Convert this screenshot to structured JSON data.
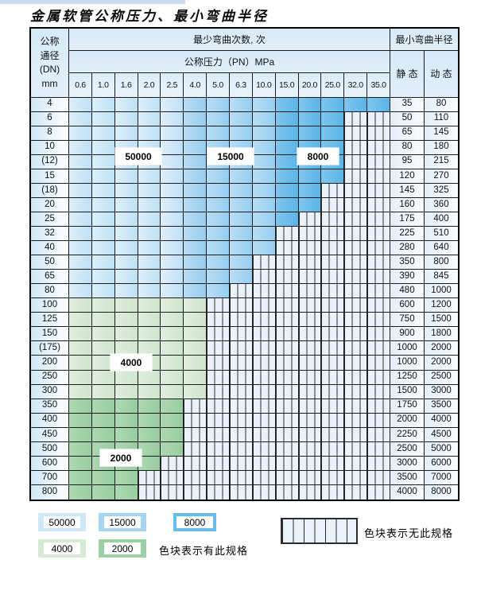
{
  "title": "金属软管公称压力、最小弯曲半径",
  "colors": {
    "cycles_50000": "#cfe8f8",
    "cycles_15000": "#a4d5f2",
    "cycles_8000": "#68beeb",
    "cycles_4000": "#d7ead5",
    "cycles_2000": "#9bd0a4",
    "hatch_bg": "#eaf2fb",
    "grid_line": "#1c1c1c"
  },
  "chart_data": {
    "type": "table",
    "title": "金属软管公称压力、最小弯曲半径",
    "corner_lines": [
      "公称",
      "通径",
      "(DN)",
      "mm"
    ],
    "bend_cycles_header": "最少弯曲次数, 次",
    "pressure_header": "公称压力（PN）MPa",
    "radius_header": "最小弯曲半径",
    "static_header": "静 态",
    "dynamic_header": "动 态",
    "pressure_columns": [
      "0.6",
      "1.0",
      "1.6",
      "2.0",
      "2.5",
      "4.0",
      "5.0",
      "6.3",
      "10.0",
      "15.0",
      "20.0",
      "25.0",
      "32.0",
      "35.0"
    ],
    "blue_band_cycles": {
      "cols_0_to_4": "50000",
      "cols_5_to_8": "15000",
      "cols_9_to_13": "8000"
    },
    "rows": [
      {
        "dn": "4",
        "colored": 14,
        "palette": "blue",
        "static": "35",
        "dynamic": "80"
      },
      {
        "dn": "6",
        "colored": 12,
        "palette": "blue",
        "static": "50",
        "dynamic": "110"
      },
      {
        "dn": "8",
        "colored": 12,
        "palette": "blue",
        "static": "65",
        "dynamic": "145"
      },
      {
        "dn": "10",
        "colored": 12,
        "palette": "blue",
        "static": "80",
        "dynamic": "180"
      },
      {
        "dn": "(12)",
        "colored": 12,
        "palette": "blue",
        "static": "95",
        "dynamic": "215"
      },
      {
        "dn": "15",
        "colored": 12,
        "palette": "blue",
        "static": "120",
        "dynamic": "270"
      },
      {
        "dn": "(18)",
        "colored": 11,
        "palette": "blue",
        "static": "145",
        "dynamic": "325"
      },
      {
        "dn": "20",
        "colored": 11,
        "palette": "blue",
        "static": "160",
        "dynamic": "360"
      },
      {
        "dn": "25",
        "colored": 10,
        "palette": "blue",
        "static": "175",
        "dynamic": "400"
      },
      {
        "dn": "32",
        "colored": 9,
        "palette": "blue",
        "static": "225",
        "dynamic": "510"
      },
      {
        "dn": "40",
        "colored": 9,
        "palette": "blue",
        "static": "280",
        "dynamic": "640"
      },
      {
        "dn": "50",
        "colored": 8,
        "palette": "blue",
        "static": "350",
        "dynamic": "800"
      },
      {
        "dn": "65",
        "colored": 8,
        "palette": "blue",
        "static": "390",
        "dynamic": "845"
      },
      {
        "dn": "80",
        "colored": 7,
        "palette": "blue",
        "static": "480",
        "dynamic": "1000"
      },
      {
        "dn": "100",
        "colored": 6,
        "palette": "green4000",
        "static": "600",
        "dynamic": "1200"
      },
      {
        "dn": "125",
        "colored": 6,
        "palette": "green4000",
        "static": "750",
        "dynamic": "1500"
      },
      {
        "dn": "150",
        "colored": 6,
        "palette": "green4000",
        "static": "900",
        "dynamic": "1800"
      },
      {
        "dn": "(175)",
        "colored": 6,
        "palette": "green4000",
        "static": "1000",
        "dynamic": "2000"
      },
      {
        "dn": "200",
        "colored": 6,
        "palette": "green4000",
        "static": "1000",
        "dynamic": "2000"
      },
      {
        "dn": "250",
        "colored": 6,
        "palette": "green4000",
        "static": "1250",
        "dynamic": "2500"
      },
      {
        "dn": "300",
        "colored": 6,
        "palette": "green4000",
        "static": "1500",
        "dynamic": "3000"
      },
      {
        "dn": "350",
        "colored": 5,
        "palette": "green2000",
        "static": "1750",
        "dynamic": "3500"
      },
      {
        "dn": "400",
        "colored": 5,
        "palette": "green2000",
        "static": "2000",
        "dynamic": "4000"
      },
      {
        "dn": "450",
        "colored": 5,
        "palette": "green2000",
        "static": "2250",
        "dynamic": "4500"
      },
      {
        "dn": "500",
        "colored": 5,
        "palette": "green2000",
        "static": "2500",
        "dynamic": "5000"
      },
      {
        "dn": "600",
        "colored": 4,
        "palette": "green2000",
        "static": "3000",
        "dynamic": "6000"
      },
      {
        "dn": "700",
        "colored": 3,
        "palette": "green2000",
        "static": "3500",
        "dynamic": "7000"
      },
      {
        "dn": "800",
        "colored": 3,
        "palette": "green2000",
        "static": "4000",
        "dynamic": "8000"
      }
    ],
    "cycle_labels": [
      "50000",
      "15000",
      "8000",
      "4000",
      "2000"
    ]
  },
  "legend": {
    "swatches": [
      {
        "value": "50000",
        "color": "#cfe8f8"
      },
      {
        "value": "15000",
        "color": "#a4d5f2"
      },
      {
        "value": "8000",
        "color": "#68beeb"
      },
      {
        "value": "4000",
        "color": "#d7ead5"
      },
      {
        "value": "2000",
        "color": "#9bd0a4"
      }
    ],
    "available_label": "色块表示有此规格",
    "unavailable_label": "色块表示无此规格"
  }
}
